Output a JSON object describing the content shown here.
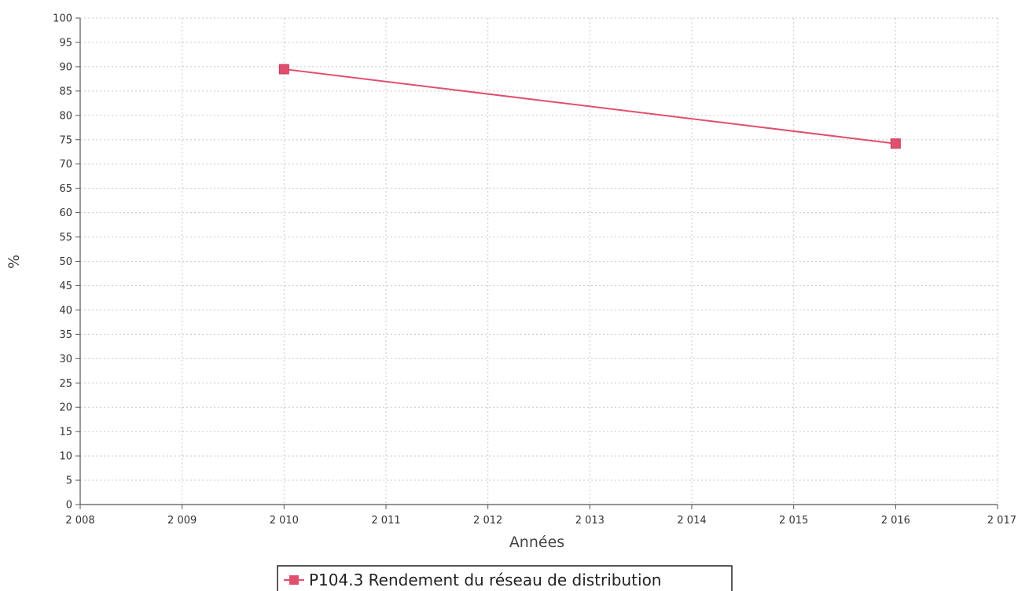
{
  "chart_data": {
    "type": "line",
    "title": "",
    "xlabel": "Années",
    "ylabel": "%",
    "xlim": [
      2008,
      2017
    ],
    "ylim": [
      0,
      100
    ],
    "x_ticks": [
      "2 008",
      "2 009",
      "2 010",
      "2 011",
      "2 012",
      "2 013",
      "2 014",
      "2 015",
      "2 016",
      "2 017"
    ],
    "y_ticks": [
      0,
      5,
      10,
      15,
      20,
      25,
      30,
      35,
      40,
      45,
      50,
      55,
      60,
      65,
      70,
      75,
      80,
      85,
      90,
      95,
      100
    ],
    "grid": true,
    "legend_position": "bottom-center",
    "series": [
      {
        "name": "P104.3 Rendement du réseau de distribution",
        "color": "#e0506e",
        "marker": "square",
        "x": [
          2010,
          2016
        ],
        "y": [
          89.5,
          74.2
        ]
      }
    ]
  }
}
